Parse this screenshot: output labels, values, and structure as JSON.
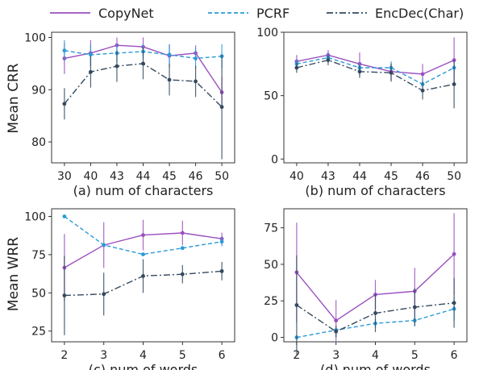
{
  "legend": {
    "items": [
      {
        "label": "CopyNet",
        "color": "#9b4fbf",
        "dash": "solid"
      },
      {
        "label": "PCRF",
        "color": "#2a9ad8",
        "dash": "dashed"
      },
      {
        "label": "EncDec(Char)",
        "color": "#34495e",
        "dash": "dashdot"
      }
    ]
  },
  "chart_data": [
    {
      "type": "line",
      "xlabel": "(a) num of characters",
      "ylabel": "Mean CRR",
      "categories": [
        "30",
        "40",
        "43",
        "44",
        "45",
        "46",
        "50"
      ],
      "ylim": [
        76,
        101
      ],
      "yticks": [
        80,
        90,
        100
      ],
      "series": [
        {
          "name": "CopyNet",
          "values": [
            96,
            97,
            98.5,
            98.2,
            96.5,
            97,
            89.5
          ],
          "err": [
            3,
            2.5,
            1.5,
            1.8,
            2.2,
            1.5,
            3
          ]
        },
        {
          "name": "PCRF",
          "values": [
            97.5,
            96.7,
            97,
            97.3,
            96.7,
            96,
            96.4
          ],
          "err": [
            2,
            2,
            1.8,
            1.5,
            2,
            2,
            2.3
          ]
        },
        {
          "name": "EncDec(Char)",
          "values": [
            87.3,
            93.4,
            94.5,
            95,
            91.9,
            91.6,
            86.7
          ],
          "err": [
            3,
            3,
            3,
            3,
            3,
            3,
            10
          ]
        }
      ]
    },
    {
      "type": "line",
      "xlabel": "(b) num of characters",
      "ylabel": "",
      "categories": [
        "40",
        "43",
        "44",
        "45",
        "46",
        "50"
      ],
      "ylim": [
        -3,
        100
      ],
      "yticks": [
        0,
        50,
        100
      ],
      "series": [
        {
          "name": "CopyNet",
          "values": [
            77,
            82,
            75,
            69,
            67,
            78
          ],
          "err": [
            5,
            4,
            9,
            7,
            8,
            18
          ]
        },
        {
          "name": "PCRF",
          "values": [
            75,
            80,
            72,
            72,
            59,
            72
          ],
          "err": [
            4,
            4,
            4,
            5,
            5,
            5
          ]
        },
        {
          "name": "EncDec(Char)",
          "values": [
            72,
            78,
            69,
            68,
            54,
            59
          ],
          "err": [
            4,
            4,
            5,
            7,
            7,
            19
          ]
        }
      ]
    },
    {
      "type": "line",
      "xlabel": "(c) num of words",
      "ylabel": "Mean WRR",
      "categories": [
        "2",
        "3",
        "4",
        "5",
        "6"
      ],
      "ylim": [
        18,
        105
      ],
      "yticks": [
        25,
        50,
        75,
        100
      ],
      "series": [
        {
          "name": "CopyNet",
          "values": [
            66.5,
            81.2,
            87.8,
            89.2,
            85.4
          ],
          "err": [
            22,
            15,
            10,
            8,
            4
          ]
        },
        {
          "name": "PCRF",
          "values": [
            100,
            81.3,
            75.2,
            79.3,
            83.5
          ],
          "err": [
            0,
            0,
            0,
            0,
            3
          ]
        },
        {
          "name": "EncDec(Char)",
          "values": [
            48.3,
            49.2,
            61,
            62.2,
            64.2
          ],
          "err": [
            26,
            14,
            11,
            6,
            6
          ]
        }
      ]
    },
    {
      "type": "line",
      "xlabel": "(d) num of words",
      "ylabel": "",
      "categories": [
        "2",
        "3",
        "4",
        "5",
        "6"
      ],
      "ylim": [
        -3,
        88
      ],
      "yticks": [
        0,
        25,
        50,
        75
      ],
      "series": [
        {
          "name": "CopyNet",
          "values": [
            44.5,
            11.5,
            29.3,
            31.6,
            57
          ],
          "err": [
            34,
            14,
            10,
            16,
            28
          ]
        },
        {
          "name": "PCRF",
          "values": [
            0,
            5,
            9.6,
            11.6,
            19.5
          ],
          "err": [
            0,
            0,
            3,
            4,
            8
          ]
        },
        {
          "name": "EncDec(Char)",
          "values": [
            22.1,
            4,
            16.6,
            20.7,
            23.6
          ],
          "err": [
            34,
            4,
            13,
            13,
            17
          ]
        }
      ]
    }
  ]
}
